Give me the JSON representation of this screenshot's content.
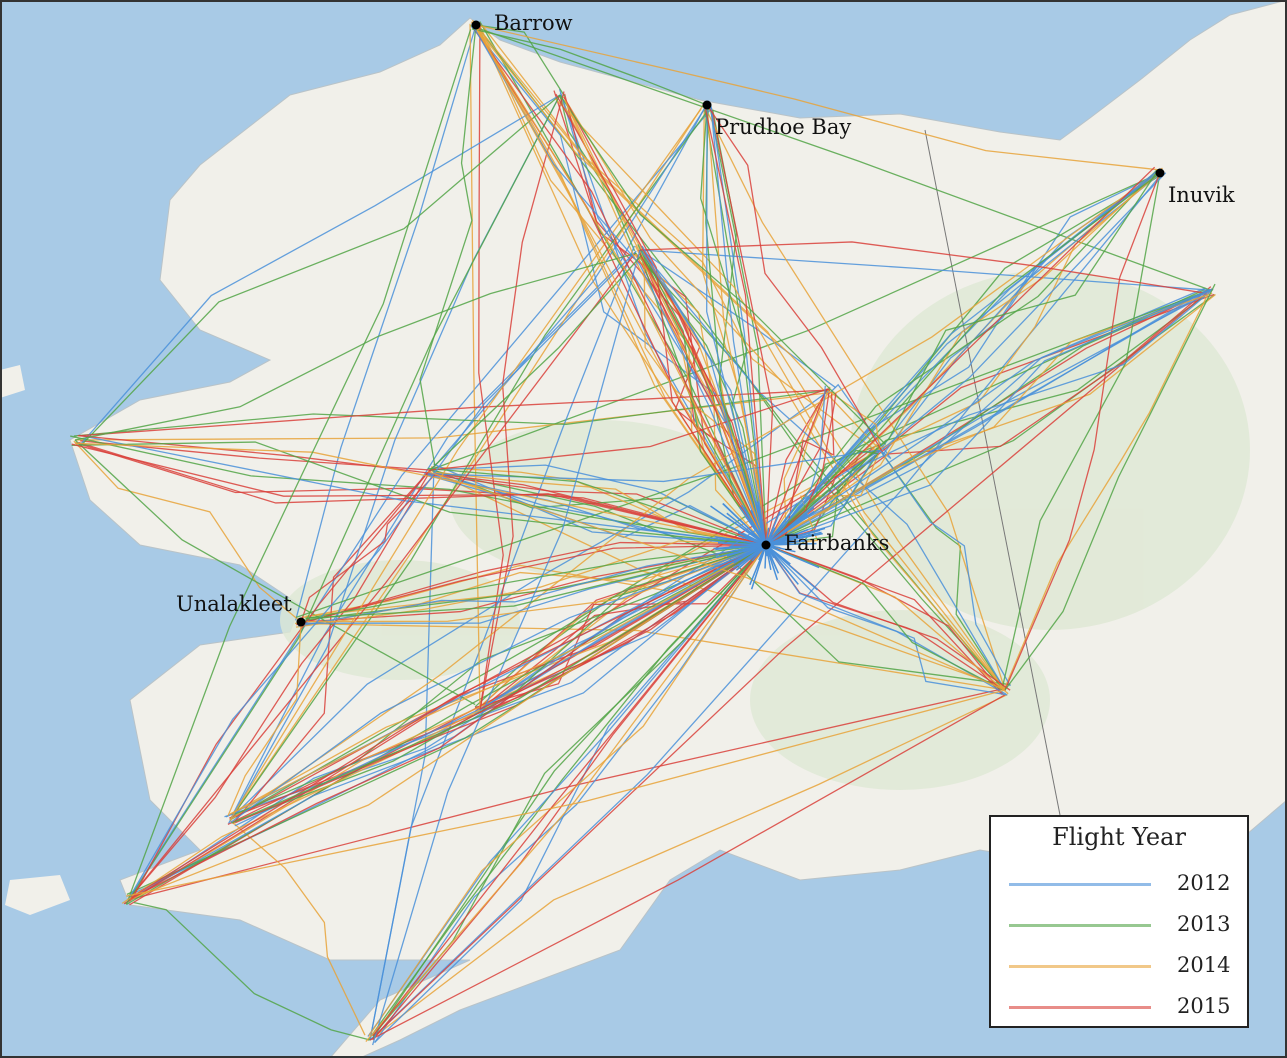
{
  "map": {
    "colors": {
      "ocean": "#a8cae6",
      "land": "#f1f0ea",
      "vegetation": "#dfe8d4",
      "border": "#777777"
    },
    "cities": [
      {
        "name": "Barrow"
      },
      {
        "name": "Prudhoe Bay"
      },
      {
        "name": "Inuvik"
      },
      {
        "name": "Fairbanks"
      },
      {
        "name": "Unalakleet"
      }
    ]
  },
  "legend": {
    "title": "Flight Year",
    "items": [
      {
        "label": "2012",
        "color": "#4a90d9"
      },
      {
        "label": "2013",
        "color": "#52a447"
      },
      {
        "label": "2014",
        "color": "#e8a33a"
      },
      {
        "label": "2015",
        "color": "#d9413b"
      }
    ]
  }
}
